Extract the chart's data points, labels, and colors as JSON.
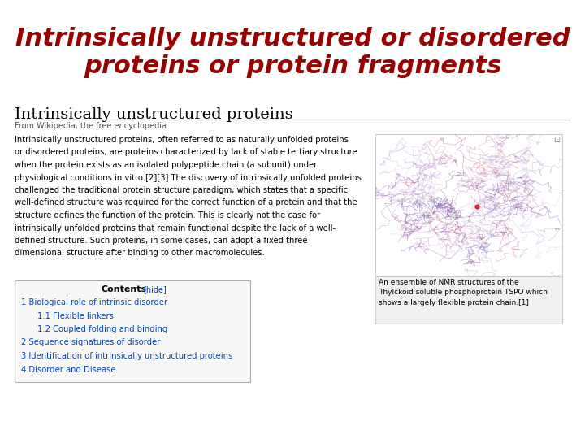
{
  "title_line1": "Intrinsically unstructured or disordered",
  "title_line2": "proteins or protein fragments",
  "title_color": "#990000",
  "title_fontsize": 22,
  "bg_color": "#ffffff",
  "wiki_heading": "Intrinsically unstructured proteins",
  "wiki_subheading": "From Wikipedia, the free encyclopedia",
  "body_text_lines": [
    "Intrinsically unstructured proteins, often referred to as naturally unfolded proteins",
    "or disordered proteins, are proteins characterized by lack of stable tertiary structure",
    "when the protein exists as an isolated polypeptide chain (a subunit) under",
    "physiological conditions in vitro.[2][3] The discovery of intrinsically unfolded proteins",
    "challenged the traditional protein structure paradigm, which states that a specific",
    "well-defined structure was required for the correct function of a protein and that the",
    "structure defines the function of the protein. This is clearly not the case for",
    "intrinsically unfolded proteins that remain functional despite the lack of a well-",
    "defined structure. Such proteins, in some cases, can adopt a fixed three",
    "dimensional structure after binding to other macromolecules."
  ],
  "contents_title": "Contents",
  "contents_hide": "[hide]",
  "contents_items": [
    {
      "text": "1 Biological role of intrinsic disorder",
      "indent": 0
    },
    {
      "text": "1.1 Flexible linkers",
      "indent": 1
    },
    {
      "text": "1.2 Coupled folding and binding",
      "indent": 1
    },
    {
      "text": "2 Sequence signatures of disorder",
      "indent": 0
    },
    {
      "text": "3 Identification of intrinsically unstructured proteins",
      "indent": 0
    },
    {
      "text": "4 Disorder and Disease",
      "indent": 0
    }
  ],
  "caption_text": "An ensemble of NMR structures of the\nThylckoid soluble phosphoprotein TSPO which\nshows a largely flexible protein chain.[1]",
  "separator_color": "#aaaaaa",
  "link_color": "#0645ad",
  "text_color": "#000000",
  "subtext_color": "#555555",
  "contents_bg": "#f8f8f8",
  "img_border_color": "#cccccc",
  "caption_bg": "#f0f0f0"
}
